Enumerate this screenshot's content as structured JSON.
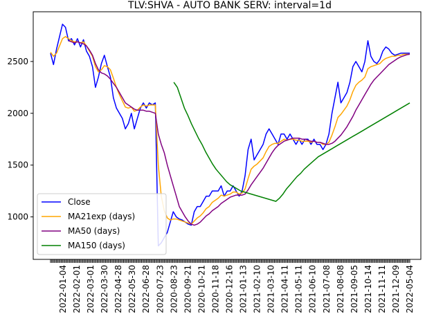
{
  "chart_data": {
    "type": "line",
    "title": "TLV:SHVA - AUTO BANK SERV: interval=1d",
    "xlabel": "",
    "ylabel": "",
    "ylim": [
      590,
      2980
    ],
    "yticks": [
      1000,
      1500,
      2000,
      2500
    ],
    "x_tick_labels": [
      "2022-01-04",
      "2022-02-01",
      "2022-03-01",
      "2022-03-30",
      "2022-04-28",
      "2022-05-30",
      "2022-06-28",
      "2020-07-23",
      "2020-08-23",
      "2020-09-21",
      "2020-10-21",
      "2020-11-18",
      "2020-12-16",
      "2021-01-13",
      "2021-02-10",
      "2021-03-10",
      "2021-04-11",
      "2021-05-11",
      "2021-06-10",
      "2021-07-08",
      "2021-08-08",
      "2021-09-05",
      "2021-10-14",
      "2021-11-11",
      "2021-12-09",
      "2022-05-04"
    ],
    "grid": false,
    "legend": {
      "placement": "lower-left"
    },
    "series": [
      {
        "name": "Close",
        "color": "#0000ff",
        "values": [
          2580,
          2470,
          2620,
          2740,
          2860,
          2830,
          2700,
          2720,
          2660,
          2720,
          2640,
          2710,
          2600,
          2550,
          2450,
          2250,
          2350,
          2480,
          2560,
          2450,
          2350,
          2150,
          2050,
          2000,
          1950,
          1850,
          1900,
          2000,
          1850,
          1950,
          2050,
          2100,
          2050,
          2100,
          2080,
          2100,
          720,
          750,
          800,
          850,
          950,
          1050,
          1000,
          980,
          970,
          950,
          930,
          920,
          1050,
          1100,
          1100,
          1150,
          1200,
          1200,
          1250,
          1250,
          1250,
          1300,
          1200,
          1250,
          1250,
          1300,
          1250,
          1200,
          1250,
          1400,
          1650,
          1750,
          1550,
          1600,
          1650,
          1700,
          1800,
          1850,
          1800,
          1750,
          1700,
          1800,
          1800,
          1750,
          1800,
          1750,
          1700,
          1750,
          1700,
          1750,
          1750,
          1700,
          1750,
          1700,
          1700,
          1650,
          1700,
          1800,
          2000,
          2150,
          2300,
          2100,
          2150,
          2200,
          2300,
          2450,
          2500,
          2450,
          2400,
          2500,
          2700,
          2550,
          2500,
          2480,
          2520,
          2600,
          2640,
          2620,
          2580,
          2560,
          2570,
          2580,
          2580,
          2580,
          2580
        ]
      },
      {
        "name": "MA21exp (days)",
        "color": "#ffa500",
        "values": [
          2590,
          2550,
          2580,
          2650,
          2720,
          2740,
          2720,
          2700,
          2690,
          2690,
          2680,
          2690,
          2650,
          2600,
          2550,
          2450,
          2400,
          2420,
          2460,
          2450,
          2420,
          2340,
          2250,
          2180,
          2120,
          2060,
          2050,
          2060,
          2020,
          2030,
          2060,
          2080,
          2070,
          2080,
          2080,
          2080,
          1500,
          1200,
          1060,
          990,
          970,
          980,
          980,
          970,
          960,
          950,
          940,
          930,
          960,
          990,
          1010,
          1040,
          1080,
          1100,
          1140,
          1160,
          1180,
          1210,
          1200,
          1210,
          1220,
          1240,
          1240,
          1220,
          1230,
          1270,
          1370,
          1460,
          1490,
          1510,
          1540,
          1570,
          1630,
          1680,
          1700,
          1710,
          1710,
          1730,
          1750,
          1740,
          1750,
          1750,
          1740,
          1740,
          1730,
          1730,
          1730,
          1720,
          1730,
          1720,
          1720,
          1700,
          1700,
          1720,
          1790,
          1870,
          1960,
          1990,
          2030,
          2070,
          2130,
          2210,
          2270,
          2300,
          2320,
          2350,
          2430,
          2450,
          2460,
          2470,
          2480,
          2510,
          2530,
          2540,
          2550,
          2550,
          2560,
          2560,
          2570,
          2570,
          2570
        ]
      },
      {
        "name": "MA50 (days)",
        "color": "#800080",
        "values": [
          null,
          null,
          null,
          null,
          null,
          null,
          2700,
          2690,
          2680,
          2690,
          2680,
          2670,
          2650,
          2610,
          2560,
          2480,
          2420,
          2390,
          2380,
          2360,
          2330,
          2290,
          2250,
          2200,
          2150,
          2100,
          2080,
          2060,
          2040,
          2030,
          2030,
          2030,
          2020,
          2020,
          2010,
          2000,
          1800,
          1700,
          1620,
          1500,
          1400,
          1300,
          1200,
          1100,
          1050,
          1000,
          960,
          930,
          920,
          930,
          950,
          980,
          1010,
          1030,
          1060,
          1080,
          1100,
          1130,
          1150,
          1170,
          1190,
          1200,
          1210,
          1210,
          1210,
          1220,
          1260,
          1310,
          1350,
          1390,
          1430,
          1470,
          1520,
          1570,
          1620,
          1660,
          1690,
          1710,
          1730,
          1740,
          1750,
          1760,
          1760,
          1760,
          1750,
          1750,
          1740,
          1730,
          1730,
          1720,
          1720,
          1710,
          1700,
          1700,
          1710,
          1730,
          1760,
          1790,
          1830,
          1870,
          1920,
          1970,
          2030,
          2080,
          2130,
          2180,
          2230,
          2280,
          2320,
          2350,
          2380,
          2410,
          2440,
          2470,
          2490,
          2510,
          2530,
          2545,
          2555,
          2565,
          2570
        ]
      },
      {
        "name": "MA150 (days)",
        "color": "#008000",
        "values": [
          null,
          null,
          null,
          null,
          null,
          null,
          null,
          null,
          null,
          null,
          null,
          null,
          null,
          null,
          null,
          null,
          null,
          null,
          null,
          null,
          null,
          null,
          null,
          null,
          null,
          null,
          null,
          null,
          null,
          null,
          null,
          null,
          null,
          null,
          null,
          2300,
          2250,
          2150,
          2050,
          1980,
          1900,
          1830,
          1760,
          1700,
          1630,
          1570,
          1510,
          1460,
          1420,
          1380,
          1340,
          1310,
          1290,
          1270,
          1250,
          1240,
          1230,
          1220,
          1210,
          1200,
          1190,
          1180,
          1170,
          1160,
          1150,
          1180,
          1220,
          1270,
          1310,
          1350,
          1390,
          1420,
          1460,
          1490,
          1520,
          1550,
          1580,
          1600,
          1620,
          1640,
          1660,
          1680,
          1700,
          1720,
          1740,
          1760,
          1780,
          1800,
          1820,
          1840,
          1860,
          1880,
          1900,
          1920,
          1940,
          1960,
          1980,
          2000,
          2020,
          2040,
          2060,
          2080,
          2100
        ]
      }
    ]
  }
}
